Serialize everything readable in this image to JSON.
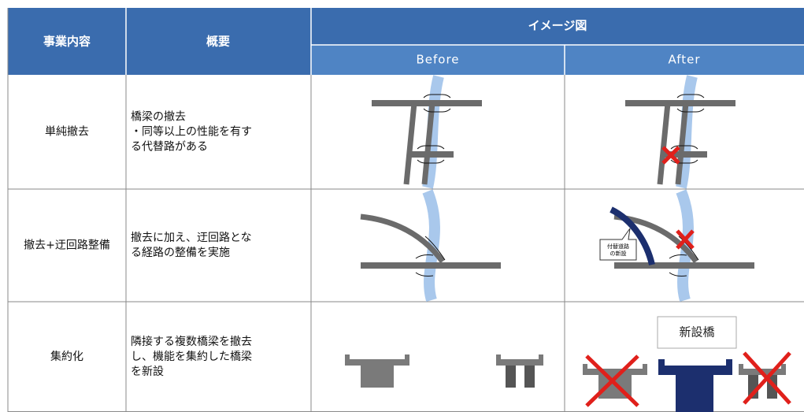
{
  "table": {
    "headers": {
      "content": "事業内容",
      "summary": "概要",
      "image": "イメージ図",
      "before": "Before",
      "after": "After"
    },
    "rows": [
      {
        "content": "単純撤去",
        "summary": [
          "橋梁の撤去",
          "・同等以上の性能を有す",
          "る代替路がある"
        ]
      },
      {
        "content": "撤去+迂回路整備",
        "summary": [
          "撤去に加え、迂回路とな",
          "る経路の整備を実施"
        ]
      },
      {
        "content": "集約化",
        "summary": [
          "隣接する複数橋梁を撤去",
          "し、機能を集約した橋梁",
          "を新設"
        ]
      }
    ]
  },
  "diagrams": {
    "detour_label": [
      "付替道路",
      "の新設"
    ],
    "new_bridge": "新設橋"
  }
}
